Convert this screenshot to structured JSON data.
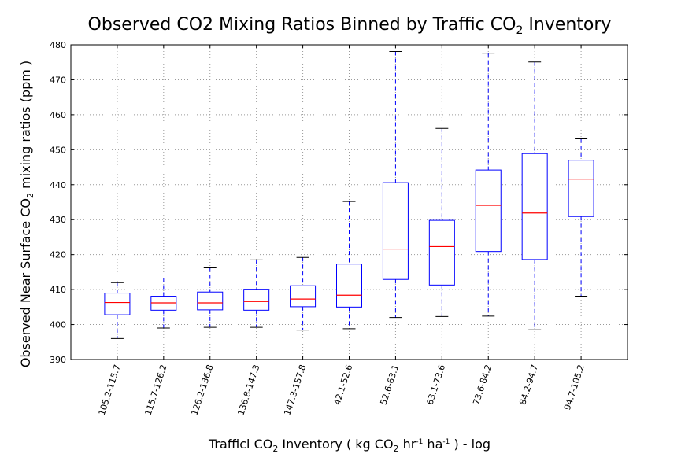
{
  "chart_data": {
    "type": "box",
    "title": {
      "main": "Observed CO2 Mixing Ratios  Binned by Traffic CO",
      "sub": "2",
      "tail": " Inventory"
    },
    "xlabel": {
      "p1": "Trafficl CO",
      "s1": "2",
      "p2": " Inventory ( kg CO",
      "s2": "2",
      "p3": " hr",
      "sup1": "-1",
      "p4": " ha",
      "sup2": "-1",
      "p5": " ) - log"
    },
    "ylabel": {
      "p1": "Observed Near Surface CO",
      "s1": "2",
      "p2": " mixing ratios (ppm )"
    },
    "ylim": [
      390,
      480
    ],
    "yticks": [
      "390",
      "400",
      "410",
      "420",
      "430",
      "440",
      "450",
      "460",
      "470",
      "480"
    ],
    "grid": true,
    "colors": {
      "box": "#0000ff",
      "median": "#ff0000",
      "whisker": "#0000ff",
      "cap": "#000000",
      "grid": "#999999"
    },
    "categories": [
      "105.2-115.7",
      "115.7-126.2",
      "126.2-136.8",
      "136.8-147.3",
      "147.3-157.8",
      "42.1-52.6",
      "52.6-63.1",
      "63.1-73.6",
      "73.6-84.2",
      "84.2-94.7",
      "94.7-105.2"
    ],
    "boxes": [
      {
        "min": 396.0,
        "q1": 402.8,
        "median": 406.3,
        "q3": 409.0,
        "max": 412.0
      },
      {
        "min": 399.0,
        "q1": 404.1,
        "median": 406.2,
        "q3": 408.1,
        "max": 413.3
      },
      {
        "min": 399.2,
        "q1": 404.2,
        "median": 406.2,
        "q3": 409.3,
        "max": 416.2
      },
      {
        "min": 399.2,
        "q1": 404.1,
        "median": 406.6,
        "q3": 410.1,
        "max": 418.5
      },
      {
        "min": 398.4,
        "q1": 405.1,
        "median": 407.3,
        "q3": 411.1,
        "max": 419.2
      },
      {
        "min": 398.8,
        "q1": 405.0,
        "median": 408.4,
        "q3": 417.3,
        "max": 435.2
      },
      {
        "min": 402.0,
        "q1": 412.9,
        "median": 421.6,
        "q3": 440.6,
        "max": 478.1
      },
      {
        "min": 402.3,
        "q1": 411.3,
        "median": 422.3,
        "q3": 429.8,
        "max": 456.1
      },
      {
        "min": 402.4,
        "q1": 420.9,
        "median": 434.1,
        "q3": 444.2,
        "max": 477.6
      },
      {
        "min": 398.5,
        "q1": 418.6,
        "median": 431.9,
        "q3": 448.9,
        "max": 475.1
      },
      {
        "min": 408.1,
        "q1": 430.9,
        "median": 441.6,
        "q3": 447.0,
        "max": 453.1
      }
    ]
  }
}
